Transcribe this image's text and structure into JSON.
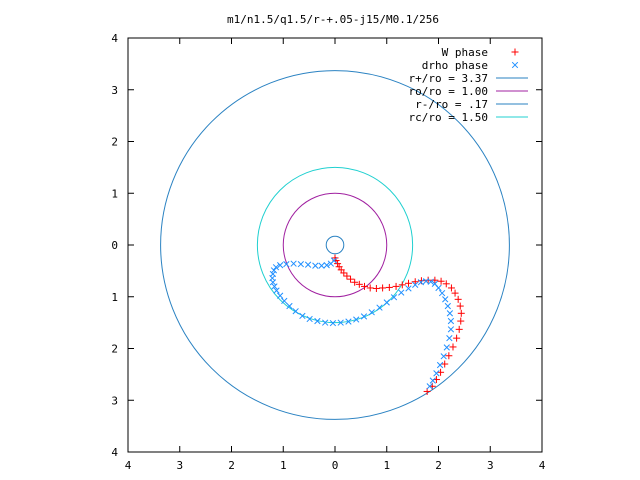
{
  "chart_data": {
    "type": "scatter",
    "title": "m1/n1.5/q1.5/r-+.05-j15/M0.1/256",
    "xlabel": "",
    "ylabel": "",
    "xlim": [
      -4,
      4
    ],
    "ylim": [
      -4,
      4
    ],
    "x_tick_labels": [
      "4",
      "3",
      "2",
      "1",
      "0",
      "1",
      "2",
      "3",
      "4"
    ],
    "y_tick_labels": [
      "4",
      "3",
      "2",
      "1",
      "0",
      "1",
      "2",
      "3",
      "4"
    ],
    "grid": false,
    "legend_position": "top-right",
    "legend": [
      {
        "label": "W phase",
        "symbol": "+",
        "color": "#ff0000"
      },
      {
        "label": "drho phase",
        "symbol": "x",
        "color": "#1f8fff"
      },
      {
        "label": "r+/ro = 3.37",
        "symbol": "line",
        "color": "#2a82c2"
      },
      {
        "label": "ro/ro = 1.00",
        "symbol": "line",
        "color": "#a020a0"
      },
      {
        "label": "r-/ro = .17",
        "symbol": "line",
        "color": "#2a82c2"
      },
      {
        "label": "rc/ro = 1.50",
        "symbol": "line",
        "color": "#20d0d0"
      }
    ],
    "circles": [
      {
        "name": "r+/ro = 3.37",
        "radius": 3.37,
        "color": "#2a82c2"
      },
      {
        "name": "ro/ro = 1.00",
        "radius": 1.0,
        "color": "#a020a0"
      },
      {
        "name": "r-/ro = .17",
        "radius": 0.17,
        "color": "#2a82c2"
      },
      {
        "name": "rc/ro = 1.50",
        "radius": 1.5,
        "color": "#20d0d0"
      }
    ],
    "series": [
      {
        "name": "W phase",
        "marker": "+",
        "color": "#ff0000",
        "points": [
          [
            0.0,
            -0.25
          ],
          [
            0.02,
            -0.3
          ],
          [
            0.05,
            -0.36
          ],
          [
            0.08,
            -0.42
          ],
          [
            0.12,
            -0.48
          ],
          [
            0.17,
            -0.54
          ],
          [
            0.23,
            -0.6
          ],
          [
            0.3,
            -0.66
          ],
          [
            0.38,
            -0.72
          ],
          [
            0.47,
            -0.76
          ],
          [
            0.57,
            -0.8
          ],
          [
            0.68,
            -0.83
          ],
          [
            0.8,
            -0.84
          ],
          [
            0.92,
            -0.83
          ],
          [
            1.05,
            -0.82
          ],
          [
            1.18,
            -0.8
          ],
          [
            1.3,
            -0.77
          ],
          [
            1.42,
            -0.74
          ],
          [
            1.55,
            -0.71
          ],
          [
            1.67,
            -0.69
          ],
          [
            1.8,
            -0.68
          ],
          [
            1.93,
            -0.68
          ],
          [
            2.05,
            -0.7
          ],
          [
            2.15,
            -0.75
          ],
          [
            2.25,
            -0.83
          ],
          [
            2.32,
            -0.93
          ],
          [
            2.38,
            -1.05
          ],
          [
            2.42,
            -1.18
          ],
          [
            2.44,
            -1.32
          ],
          [
            2.43,
            -1.47
          ],
          [
            2.4,
            -1.63
          ],
          [
            2.35,
            -1.8
          ],
          [
            2.28,
            -1.97
          ],
          [
            2.2,
            -2.14
          ],
          [
            2.12,
            -2.3
          ],
          [
            2.04,
            -2.46
          ],
          [
            1.96,
            -2.6
          ],
          [
            1.88,
            -2.73
          ],
          [
            1.78,
            -2.83
          ]
        ]
      },
      {
        "name": "drho phase",
        "marker": "x",
        "color": "#1f8fff",
        "points": [
          [
            -0.02,
            -0.3
          ],
          [
            -0.08,
            -0.36
          ],
          [
            -0.16,
            -0.39
          ],
          [
            -0.26,
            -0.4
          ],
          [
            -0.38,
            -0.4
          ],
          [
            -0.52,
            -0.38
          ],
          [
            -0.66,
            -0.37
          ],
          [
            -0.8,
            -0.36
          ],
          [
            -0.94,
            -0.37
          ],
          [
            -1.06,
            -0.39
          ],
          [
            -1.14,
            -0.43
          ],
          [
            -1.18,
            -0.49
          ],
          [
            -1.2,
            -0.56
          ],
          [
            -1.21,
            -0.64
          ],
          [
            -1.2,
            -0.72
          ],
          [
            -1.17,
            -0.8
          ],
          [
            -1.13,
            -0.88
          ],
          [
            -1.06,
            -0.98
          ],
          [
            -0.98,
            -1.08
          ],
          [
            -0.88,
            -1.18
          ],
          [
            -0.76,
            -1.28
          ],
          [
            -0.63,
            -1.37
          ],
          [
            -0.49,
            -1.43
          ],
          [
            -0.34,
            -1.47
          ],
          [
            -0.19,
            -1.5
          ],
          [
            -0.04,
            -1.51
          ],
          [
            0.11,
            -1.5
          ],
          [
            0.26,
            -1.48
          ],
          [
            0.41,
            -1.44
          ],
          [
            0.56,
            -1.38
          ],
          [
            0.71,
            -1.3
          ],
          [
            0.86,
            -1.21
          ],
          [
            1.0,
            -1.11
          ],
          [
            1.14,
            -1.01
          ],
          [
            1.28,
            -0.92
          ],
          [
            1.42,
            -0.84
          ],
          [
            1.55,
            -0.77
          ],
          [
            1.66,
            -0.72
          ],
          [
            1.76,
            -0.7
          ],
          [
            1.85,
            -0.71
          ],
          [
            1.93,
            -0.75
          ],
          [
            2.0,
            -0.83
          ],
          [
            2.07,
            -0.93
          ],
          [
            2.13,
            -1.05
          ],
          [
            2.18,
            -1.18
          ],
          [
            2.22,
            -1.32
          ],
          [
            2.24,
            -1.47
          ],
          [
            2.24,
            -1.63
          ],
          [
            2.21,
            -1.8
          ],
          [
            2.16,
            -1.98
          ],
          [
            2.1,
            -2.15
          ],
          [
            2.03,
            -2.32
          ],
          [
            1.96,
            -2.48
          ],
          [
            1.89,
            -2.62
          ],
          [
            1.83,
            -2.73
          ]
        ]
      }
    ]
  }
}
